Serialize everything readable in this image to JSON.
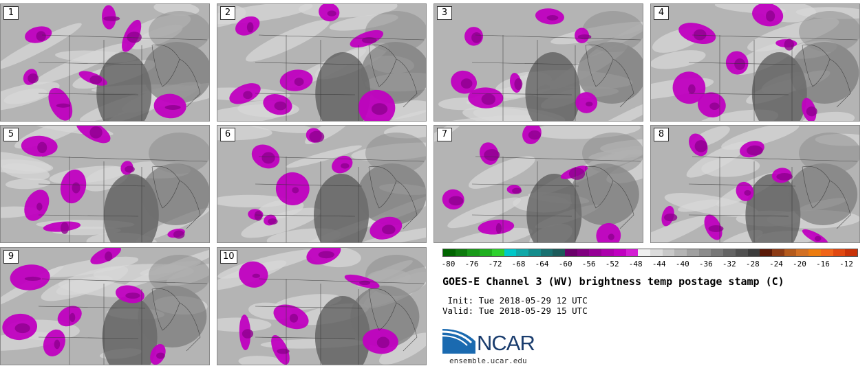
{
  "panels": [
    {
      "label": "1",
      "seed": 11
    },
    {
      "label": "2",
      "seed": 23
    },
    {
      "label": "3",
      "seed": 37
    },
    {
      "label": "4",
      "seed": 41
    },
    {
      "label": "5",
      "seed": 53
    },
    {
      "label": "6",
      "seed": 67
    },
    {
      "label": "7",
      "seed": 71
    },
    {
      "label": "8",
      "seed": 83
    },
    {
      "label": "9",
      "seed": 97
    },
    {
      "label": "10",
      "seed": 101
    }
  ],
  "colorbar": {
    "colors": [
      "#006400",
      "#0d7a0d",
      "#199919",
      "#1faf1f",
      "#2ed02e",
      "#00c8c8",
      "#10a8a8",
      "#148c8c",
      "#187070",
      "#1c5a5a",
      "#6a006a",
      "#800080",
      "#960096",
      "#ac00ac",
      "#c000c0",
      "#d41ed4",
      "#f0f0f0",
      "#dcdcdc",
      "#c8c8c8",
      "#b4b4b4",
      "#a0a0a0",
      "#8c8c8c",
      "#787878",
      "#646464",
      "#505050",
      "#3c3c3c",
      "#5a1a08",
      "#8c3a14",
      "#b45a1c",
      "#d27024",
      "#ec7c10",
      "#f06418",
      "#e04810",
      "#c83208"
    ],
    "ticks": [
      "-80",
      "-76",
      "-72",
      "-68",
      "-64",
      "-60",
      "-56",
      "-52",
      "-48",
      "-44",
      "-40",
      "-36",
      "-32",
      "-28",
      "-24",
      "-20",
      "-16",
      "-12"
    ],
    "vmin": -81,
    "vmax": -10
  },
  "title": "GOES-E Channel 3 (WV) brightness temp postage stamp (C)",
  "init_text": " Init: Tue 2018-05-29 12 UTC",
  "valid_text": "Valid: Tue 2018-05-29 15 UTC",
  "logo": {
    "name": "NCAR",
    "website": "ensemble.ucar.edu",
    "color": "#1a3d6e"
  }
}
